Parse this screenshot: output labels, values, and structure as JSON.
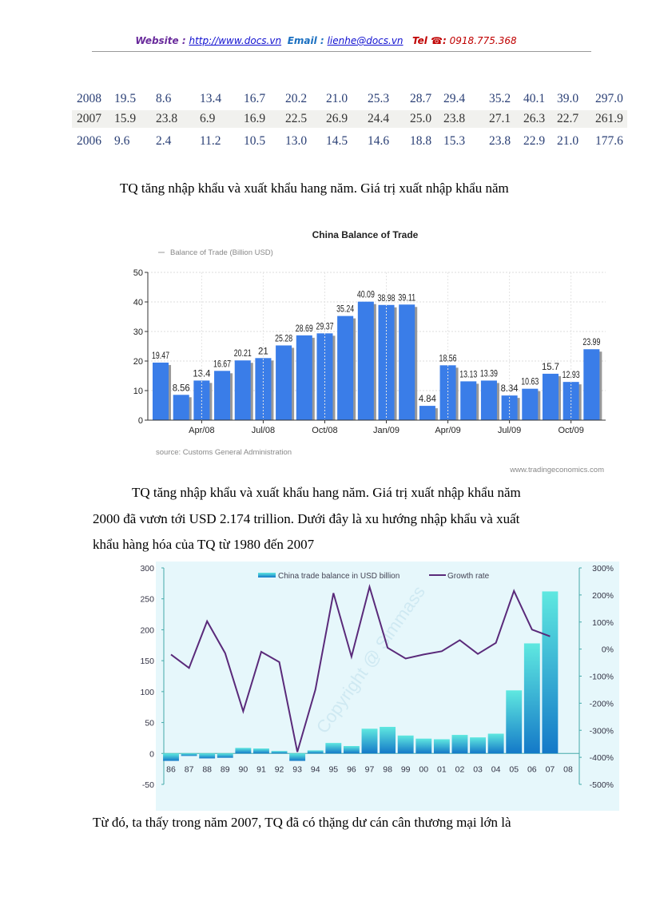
{
  "header": {
    "website_label": "Website :",
    "website_url": "http://www.docs.vn",
    "email_label": "Email  :",
    "email": "lienhe@docs.vn",
    "tel_label": "Tel ☎:",
    "tel": "0918.775.368"
  },
  "table": {
    "rows": [
      [
        "2008",
        "19.5",
        "8.6",
        "13.4",
        "16.7",
        "20.2",
        "21.0",
        "25.3",
        "28.7",
        "29.4",
        "35.2",
        "40.1",
        "39.0",
        "297.0"
      ],
      [
        "2007",
        "15.9",
        "23.8",
        "6.9",
        "16.9",
        "22.5",
        "26.9",
        "24.4",
        "25.0",
        "23.8",
        "27.1",
        "26.3",
        "22.7",
        "261.9"
      ],
      [
        "2006",
        "9.6",
        "2.4",
        "11.2",
        "10.5",
        "13.0",
        "14.5",
        "14.6",
        "18.8",
        "15.3",
        "23.8",
        "22.9",
        "21.0",
        "177.6"
      ]
    ]
  },
  "text": {
    "line1": "TQ tăng nhập khẩu và xuất khẩu hang năm. Giá trị xuất nhập khẩu năm",
    "para2_l1": "TQ tăng nhập khẩu và xuất khẩu hang năm. Giá trị xuất nhập khẩu năm",
    "para2_l2": "2000 đã vươn tới USD 2.174 trillion.  Dưới đây là xu hướng nhập khẩu và xuất",
    "para2_l3": "khẩu hàng hóa của TQ từ 1980 đến 2007",
    "para3": "Từ đó, ta thấy trong năm 2007, TQ đã có thặng dư cán cân thương mại lớn là"
  },
  "chart_data": [
    {
      "type": "bar",
      "title": "China Balance of Trade",
      "legend": "Balance of Trade (Billion USD)",
      "source": "source: Customs General Administration",
      "credit": "www.tradingeconomics.com",
      "values": [
        19.47,
        8.56,
        13.4,
        16.67,
        20.21,
        21,
        25.28,
        28.69,
        29.37,
        35.24,
        40.09,
        38.98,
        39.11,
        4.84,
        18.56,
        13.13,
        13.39,
        8.34,
        10.63,
        15.7,
        12.93,
        23.99
      ],
      "labels": [
        "19.47",
        "8.56",
        "13.4",
        "16.67",
        "20.21",
        "21",
        "25.28",
        "28.69",
        "29.37",
        "35.24",
        "40.09",
        "38.98",
        "39.11",
        "4.84",
        "18.56",
        "13.13",
        "13.39",
        "8.34",
        "10.63",
        "15.7",
        "12.93",
        "23.99"
      ],
      "xticks": [
        "Apr/08",
        "Jul/08",
        "Oct/08",
        "Jan/09",
        "Apr/09",
        "Jul/09",
        "Oct/09"
      ],
      "yticks": [
        "0",
        "10",
        "20",
        "30",
        "40",
        "50"
      ],
      "ylim": [
        0,
        50
      ],
      "grid": true,
      "color": "#3a7de8"
    },
    {
      "type": "bar+line",
      "categories": [
        "86",
        "87",
        "88",
        "89",
        "90",
        "91",
        "92",
        "93",
        "94",
        "95",
        "96",
        "97",
        "98",
        "99",
        "00",
        "01",
        "02",
        "03",
        "04",
        "05",
        "06",
        "07",
        "08"
      ],
      "series": [
        {
          "name": "China trade balance in USD billion",
          "type": "bar",
          "axis": "left",
          "values": [
            -12,
            -4,
            -8,
            -7,
            9,
            8,
            4,
            -12,
            5,
            17,
            12,
            40,
            43,
            29,
            24,
            23,
            30,
            26,
            32,
            102,
            178,
            262,
            null
          ]
        },
        {
          "name": "Growth rate",
          "type": "line",
          "axis": "right",
          "values": [
            -20,
            -70,
            103,
            -15,
            -230,
            -10,
            -48,
            -380,
            -150,
            207,
            -28,
            230,
            5,
            -35,
            -20,
            -8,
            33,
            -18,
            23,
            215,
            72,
            47,
            null
          ]
        }
      ],
      "yticks_left": [
        "300",
        "250",
        "200",
        "150",
        "100",
        "50",
        "0",
        "-50"
      ],
      "yticks_right": [
        "300%",
        "200%",
        "100%",
        "0%",
        "-100%",
        "-200%",
        "-300%",
        "-400%",
        "-500%"
      ],
      "ylim_left": [
        -50,
        300
      ],
      "ylim_right": [
        -500,
        300
      ],
      "watermark": "Copyright @ Simmass",
      "colors": {
        "bar": "#1fb8d8",
        "line": "#5a2a7a",
        "background": "#e6f7fb"
      }
    }
  ]
}
